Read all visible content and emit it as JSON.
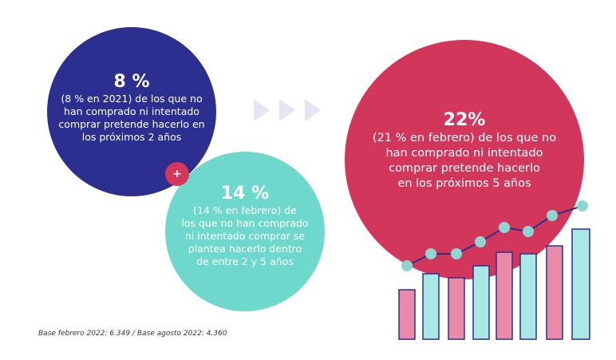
{
  "circles": [
    {
      "headline": "8 %",
      "lines": [
        "(8 % en 2021) de los que no",
        "han comprado ni intentado",
        "comprar pretende hacerlo en",
        "los próximos 2 años"
      ]
    },
    {
      "headline": "14 %",
      "lines": [
        "(14 % en febrero) de",
        "los que no han comprado",
        "ni intentado comprar se",
        "plantea hacerlo dentro",
        "de entre 2 y 5 años"
      ]
    },
    {
      "headline": "22%",
      "lines": [
        "(21 % en febrero) de los que no",
        "han comprado ni intentado",
        "comprar pretende hacerlo",
        "en los próximos 5 años"
      ]
    }
  ],
  "plus": "+",
  "footnote": "Base febrero 2022: 6.349 / Base agosto 2022: 4.360"
}
